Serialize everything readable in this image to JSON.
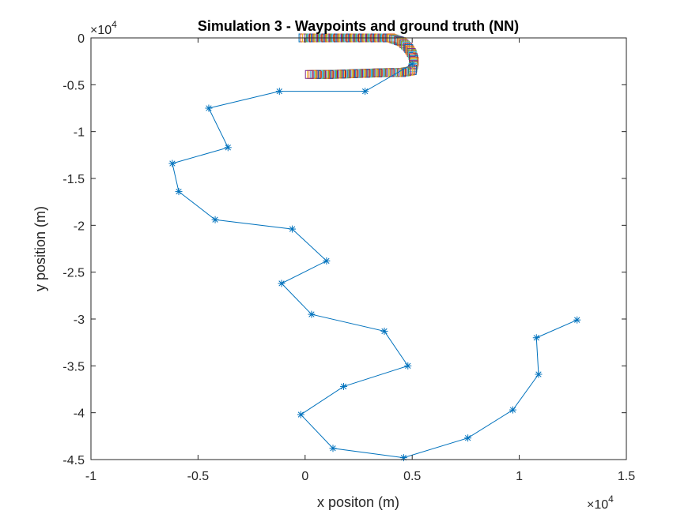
{
  "chart_data": {
    "type": "line",
    "title": "Simulation 3 - Waypoints and ground truth (NN)",
    "xlabel": "x positon (m)",
    "ylabel": "y position (m)",
    "xlim": [
      -10000,
      15000
    ],
    "ylim": [
      -45000,
      0
    ],
    "x_ticks": [
      -10000,
      -5000,
      0,
      5000,
      10000,
      15000
    ],
    "x_tick_labels": [
      "-1",
      "-0.5",
      "0",
      "0.5",
      "1",
      "1.5"
    ],
    "y_ticks": [
      0,
      -5000,
      -10000,
      -15000,
      -20000,
      -25000,
      -30000,
      -35000,
      -40000,
      -45000
    ],
    "y_tick_labels": [
      "0",
      "-0.5",
      "-1",
      "-1.5",
      "-2",
      "-2.5",
      "-3",
      "-3.5",
      "-4",
      "-4.5"
    ],
    "x_multiplier": "×10",
    "x_multiplier_exp": "4",
    "y_multiplier": "×10",
    "y_multiplier_exp": "4",
    "grid": false,
    "legend": "none",
    "series": [
      {
        "marker": "asterisk",
        "color": "#0072BD",
        "x": [
          12700,
          10800,
          10900,
          9700,
          7600,
          4600,
          1300,
          -200,
          1800,
          4800,
          3700,
          300,
          -1100,
          1000,
          -600,
          -4200,
          -5900,
          -6200,
          -3600,
          -4500,
          -1200,
          2800,
          5000
        ],
        "y": [
          -30100,
          -32000,
          -35900,
          -39700,
          -42700,
          -44800,
          -43800,
          -40200,
          -37200,
          -35000,
          -31300,
          -29500,
          -26200,
          -23800,
          -20400,
          -19400,
          -16400,
          -13400,
          -11700,
          -7500,
          -5700,
          -5700,
          -2800
        ]
      },
      {
        "marker": "square",
        "note_color": "multicolor",
        "x": [
          -100,
          4000,
          4500,
          4800,
          5000,
          5100,
          5000,
          4500,
          3800,
          2500,
          1200,
          200
        ],
        "y": [
          0,
          0,
          -400,
          -1000,
          -1700,
          -2500,
          -3500,
          -3700,
          -3700,
          -3800,
          -3900,
          -3900
        ]
      }
    ]
  },
  "colors": {
    "series_primary": "#0072BD",
    "truth_palette": [
      "#0072BD",
      "#D95319",
      "#EDB120",
      "#7E2F8E",
      "#77AC30",
      "#4DBEEE",
      "#A2142F"
    ],
    "axes": "#262626"
  }
}
